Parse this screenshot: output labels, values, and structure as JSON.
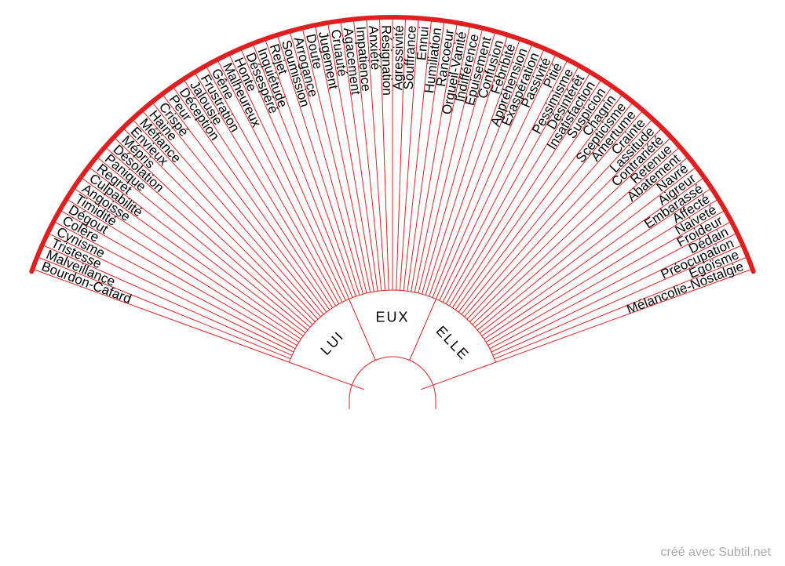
{
  "wheel": {
    "line_color": "#e02020",
    "text_color": "#000000",
    "words": [
      "Bourdon-Cafard",
      "Malveillance",
      "Tristesse",
      "Cynisme",
      "Colère",
      "Dégout",
      "Timidité",
      "Angoisse",
      "Culpabilité",
      "Regret",
      "Panique",
      "Désolation",
      "Mépris",
      "Envieux",
      "Méfiance",
      "Haine",
      "Crispé",
      "Peur",
      "Déception",
      "Jalousie",
      "Frustration",
      "Gêne",
      "Malheureux",
      "Honte",
      "Désespéré",
      "Inquiétude",
      "Rejet",
      "Soumission",
      "Arrogance",
      "Doute",
      "Jugement",
      "Cruauté",
      "Agacement",
      "Impatience",
      "Anxiété",
      "Résignation",
      "Agressivité",
      "Souffrance",
      "Ennui",
      "Humiliation",
      "Rancoeur",
      "Orgueil-Vanité",
      "Indifférence",
      "Epuisement",
      "Confusion",
      "Fébribité",
      "Appréhension",
      "Exaspération",
      "Passivité",
      "Pitié",
      "Pessimisme",
      "Désintérêt",
      "Insatisfaction",
      "Suspicion",
      "Chagrin",
      "Scepticisme",
      "Amertume",
      "Crainte",
      "Lassitude",
      "Contrariété",
      "Retenue",
      "Abatement",
      "Navré",
      "Aigreur",
      "Embarassé",
      "Affecté",
      "Naiveté",
      "Froideur",
      "Dédain",
      "Préocupation",
      "Egoïsme",
      "Mélancolie-Nostalgie"
    ],
    "center_sections": [
      "LUI",
      "EUX",
      "ELLE"
    ]
  },
  "footer": {
    "credit": "créé avec Subtil.net"
  }
}
